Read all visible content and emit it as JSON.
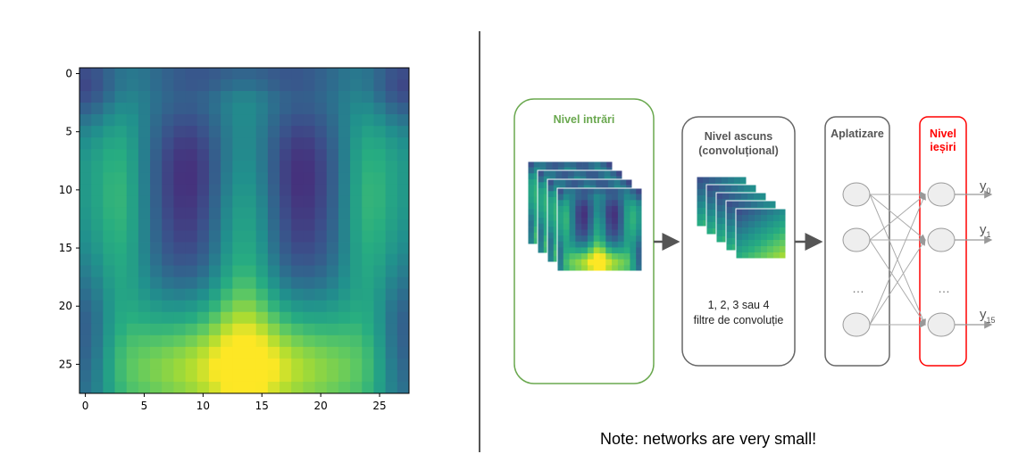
{
  "heatmap": {
    "x_ticks": [
      "0",
      "5",
      "10",
      "15",
      "20",
      "25"
    ],
    "y_ticks": [
      "0",
      "5",
      "10",
      "15",
      "20",
      "25"
    ]
  },
  "diagram": {
    "input_layer_label": "Nivel intrări",
    "hidden_layer_label_1": "Nivel ascuns",
    "hidden_layer_label_2": "(convoluțional)",
    "hidden_layer_note_1": "1, 2, 3 sau 4",
    "hidden_layer_note_2": "filtre de convoluție",
    "flatten_label": "Aplatizare",
    "output_layer_label_1": "Nivel",
    "output_layer_label_2": "ieșiri",
    "flatten_ellipsis": "…",
    "output_ellipsis": "…",
    "outputs": [
      {
        "symbol": "y",
        "index": "0"
      },
      {
        "symbol": "y",
        "index": "1"
      },
      {
        "symbol": "y",
        "index": "15"
      }
    ],
    "colors": {
      "input_border": "#6aa84f",
      "output_border": "#ff0000",
      "box_border": "#666666",
      "node_fill": "#eeeeee",
      "node_stroke": "#999999"
    }
  },
  "note": "Note: networks are very small!"
}
